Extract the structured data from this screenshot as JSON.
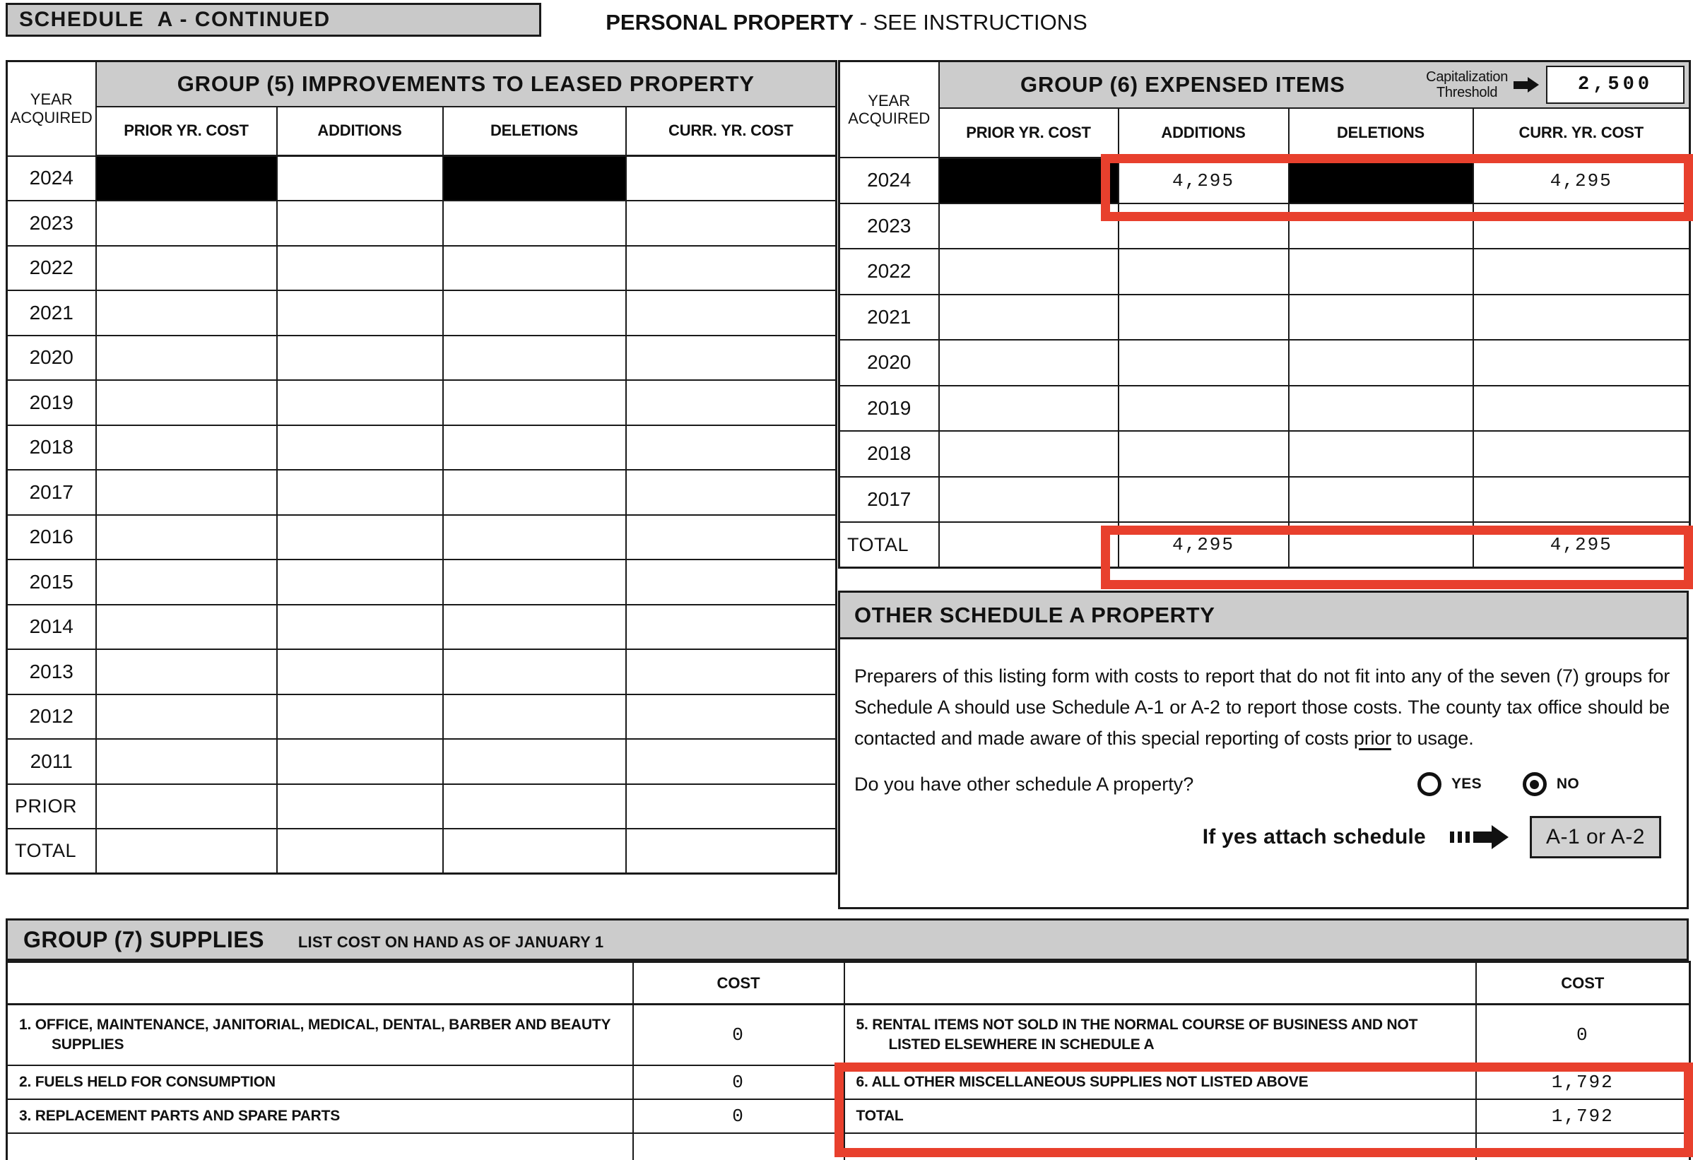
{
  "accent_red": "#e8402d",
  "header": {
    "schedule_label": "SCHEDULE  A - CONTINUED",
    "title_bold": "PERSONAL PROPERTY",
    "title_rest": " - SEE INSTRUCTIONS"
  },
  "year_col": {
    "line1": "YEAR",
    "line2": "ACQUIRED"
  },
  "columns": [
    "PRIOR YR. COST",
    "ADDITIONS",
    "DELETIONS",
    "CURR. YR. COST"
  ],
  "group5": {
    "title": "GROUP (5) IMPROVEMENTS TO LEASED PROPERTY",
    "rows": [
      {
        "year": "2024",
        "cells": [
          {
            "black": true
          },
          {},
          {
            "black": true
          },
          {}
        ]
      },
      {
        "year": "2023",
        "cells": [
          {},
          {},
          {},
          {}
        ]
      },
      {
        "year": "2022",
        "cells": [
          {},
          {},
          {},
          {}
        ]
      },
      {
        "year": "2021",
        "cells": [
          {},
          {},
          {},
          {}
        ]
      },
      {
        "year": "2020",
        "cells": [
          {},
          {},
          {},
          {}
        ]
      },
      {
        "year": "2019",
        "cells": [
          {},
          {},
          {},
          {}
        ]
      },
      {
        "year": "2018",
        "cells": [
          {},
          {},
          {},
          {}
        ]
      },
      {
        "year": "2017",
        "cells": [
          {},
          {},
          {},
          {}
        ]
      },
      {
        "year": "2016",
        "cells": [
          {},
          {},
          {},
          {}
        ]
      },
      {
        "year": "2015",
        "cells": [
          {},
          {},
          {},
          {}
        ]
      },
      {
        "year": "2014",
        "cells": [
          {},
          {},
          {},
          {}
        ]
      },
      {
        "year": "2013",
        "cells": [
          {},
          {},
          {},
          {}
        ]
      },
      {
        "year": "2012",
        "cells": [
          {},
          {},
          {},
          {}
        ]
      },
      {
        "year": "2011",
        "cells": [
          {},
          {},
          {},
          {}
        ]
      },
      {
        "year": "PRIOR",
        "cells": [
          {},
          {},
          {},
          {}
        ]
      },
      {
        "year": "TOTAL",
        "cells": [
          {},
          {},
          {},
          {}
        ]
      }
    ]
  },
  "group6": {
    "title": "GROUP (6) EXPENSED ITEMS",
    "cap_label_line1": "Capitalization",
    "cap_label_line2": "Threshold",
    "cap_value": "2,500",
    "rows": [
      {
        "year": "2024",
        "cells": [
          {
            "black": true
          },
          {
            "t": "4,295"
          },
          {
            "black": true
          },
          {
            "t": "4,295"
          }
        ]
      },
      {
        "year": "2023",
        "cells": [
          {},
          {},
          {},
          {}
        ]
      },
      {
        "year": "2022",
        "cells": [
          {},
          {},
          {},
          {}
        ]
      },
      {
        "year": "2021",
        "cells": [
          {},
          {},
          {},
          {}
        ]
      },
      {
        "year": "2020",
        "cells": [
          {},
          {},
          {},
          {}
        ]
      },
      {
        "year": "2019",
        "cells": [
          {},
          {},
          {},
          {}
        ]
      },
      {
        "year": "2018",
        "cells": [
          {},
          {},
          {},
          {}
        ]
      },
      {
        "year": "2017",
        "cells": [
          {},
          {},
          {},
          {}
        ]
      },
      {
        "year": "TOTAL",
        "cells": [
          {},
          {
            "t": "4,295"
          },
          {},
          {
            "t": "4,295"
          }
        ]
      }
    ]
  },
  "other": {
    "title": "OTHER SCHEDULE A PROPERTY",
    "para_1": "Preparers of this listing form with costs to report that do not fit into any of the seven (7) groups for Schedule A should use Schedule A-1 or A-2 to report those costs. The county tax office should be contacted and made aware of this special reporting of costs ",
    "para_underlined": "prior",
    "para_2": " to usage.",
    "question": "Do you have other schedule A property?",
    "yes_label": "YES",
    "no_label": "NO",
    "selected": "NO",
    "attach_text": "If yes attach schedule",
    "attach_box": "A-1 or A-2"
  },
  "group7": {
    "title": "GROUP (7) SUPPLIES",
    "subtitle": "LIST COST ON HAND AS OF JANUARY 1",
    "cost_header": "COST",
    "left_rows": [
      {
        "label": "1.  OFFICE, MAINTENANCE, JANITORIAL, MEDICAL, DENTAL, BARBER AND BEAUTY SUPPLIES",
        "value": "0"
      },
      {
        "label": "2.  FUELS HELD FOR CONSUMPTION",
        "value": "0"
      },
      {
        "label": "3.  REPLACEMENT PARTS AND SPARE PARTS",
        "value": "0"
      }
    ],
    "right_rows": [
      {
        "label": "5.  RENTAL ITEMS NOT SOLD IN THE NORMAL COURSE OF BUSINESS AND NOT LISTED ELSEWHERE IN SCHEDULE A",
        "value": "0"
      },
      {
        "label": "6.  ALL OTHER MISCELLANEOUS SUPPLIES NOT LISTED ABOVE",
        "value": "1,792"
      },
      {
        "label": "TOTAL",
        "value": "1,792"
      }
    ]
  }
}
